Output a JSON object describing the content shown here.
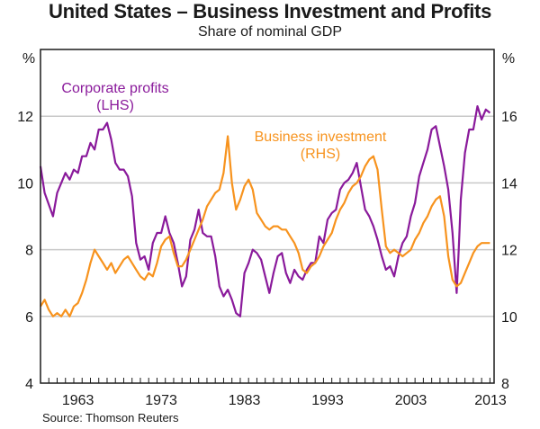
{
  "chart_data": {
    "type": "line",
    "title": "United States – Business Investment and Profits",
    "subtitle": "Share of nominal GDP",
    "source": "Source: Thomson Reuters",
    "xlabel": "",
    "ylabel_left": "%",
    "ylabel_right": "%",
    "xlim": [
      1959.0,
      2013.5
    ],
    "ylim_left": [
      4,
      14
    ],
    "ylim_right": [
      8,
      18
    ],
    "yticks_left": [
      4,
      6,
      8,
      10,
      12
    ],
    "yticks_right": [
      8,
      10,
      12,
      14,
      16
    ],
    "xtick_labels": [
      "1963",
      "1973",
      "1983",
      "1993",
      "2003",
      "2013"
    ],
    "xtick_values": [
      1963.5,
      1973.5,
      1983.5,
      1993.5,
      2003.5,
      2013.5
    ],
    "grid": true,
    "series": [
      {
        "name": "Corporate profits",
        "axis": "LHS",
        "annotation": [
          "Corporate profits",
          "(LHS)"
        ],
        "color": "#8a1a9b",
        "x": [
          1959.0,
          1959.5,
          1960.5,
          1961.0,
          1962.0,
          1962.5,
          1963.0,
          1963.5,
          1964.0,
          1964.5,
          1965.0,
          1965.5,
          1966.0,
          1966.5,
          1967.0,
          1967.5,
          1968.0,
          1968.5,
          1969.0,
          1969.5,
          1970.0,
          1970.5,
          1971.0,
          1971.5,
          1972.0,
          1972.5,
          1973.0,
          1973.5,
          1974.0,
          1974.5,
          1975.0,
          1975.5,
          1976.0,
          1976.5,
          1977.0,
          1977.5,
          1978.0,
          1978.5,
          1979.0,
          1979.5,
          1980.0,
          1980.5,
          1981.0,
          1981.5,
          1982.0,
          1982.5,
          1983.0,
          1983.5,
          1984.0,
          1984.5,
          1985.0,
          1985.5,
          1986.0,
          1986.5,
          1987.0,
          1987.5,
          1988.0,
          1988.5,
          1989.0,
          1989.5,
          1990.0,
          1990.5,
          1991.0,
          1991.5,
          1992.0,
          1992.5,
          1993.0,
          1993.5,
          1994.0,
          1994.5,
          1995.0,
          1995.5,
          1996.0,
          1996.5,
          1997.0,
          1997.5,
          1998.0,
          1998.5,
          1999.0,
          1999.5,
          2000.0,
          2000.5,
          2001.0,
          2001.5,
          2002.0,
          2002.5,
          2003.0,
          2003.5,
          2004.0,
          2004.5,
          2005.0,
          2005.5,
          2006.0,
          2006.5,
          2007.0,
          2007.5,
          2008.0,
          2008.5,
          2009.0,
          2009.25,
          2009.5,
          2010.0,
          2010.5,
          2011.0,
          2011.5,
          2012.0,
          2012.5,
          2013.0
        ],
        "values": [
          10.5,
          9.7,
          9.0,
          9.7,
          10.3,
          10.1,
          10.4,
          10.3,
          10.8,
          10.8,
          11.2,
          11.0,
          11.6,
          11.6,
          11.8,
          11.3,
          10.6,
          10.4,
          10.4,
          10.2,
          9.6,
          8.2,
          7.7,
          7.8,
          7.4,
          8.2,
          8.5,
          8.5,
          9.0,
          8.5,
          8.2,
          7.6,
          6.9,
          7.2,
          8.3,
          8.6,
          9.2,
          8.5,
          8.4,
          8.4,
          7.8,
          6.9,
          6.6,
          6.8,
          6.5,
          6.1,
          6.0,
          7.3,
          7.6,
          8.0,
          7.9,
          7.7,
          7.2,
          6.7,
          7.3,
          7.8,
          7.9,
          7.3,
          7.0,
          7.4,
          7.2,
          7.1,
          7.4,
          7.6,
          7.6,
          8.4,
          8.2,
          8.9,
          9.1,
          9.2,
          9.8,
          10.0,
          10.1,
          10.3,
          10.6,
          9.9,
          9.2,
          9.0,
          8.7,
          8.3,
          7.8,
          7.4,
          7.5,
          7.2,
          7.8,
          8.2,
          8.4,
          9.0,
          9.4,
          10.2,
          10.6,
          11.0,
          11.6,
          11.7,
          11.1,
          10.5,
          9.8,
          8.5,
          6.7,
          8.0,
          9.5,
          10.9,
          11.6,
          11.6,
          12.3,
          11.9,
          12.2,
          12.1
        ]
      },
      {
        "name": "Business investment",
        "axis": "RHS",
        "annotation": [
          "Business investment",
          "(RHS)"
        ],
        "color": "#f7931e",
        "x": [
          1959.0,
          1959.5,
          1960.0,
          1960.5,
          1961.0,
          1961.5,
          1962.0,
          1962.5,
          1963.0,
          1963.5,
          1964.0,
          1964.5,
          1965.0,
          1965.5,
          1966.0,
          1966.5,
          1967.0,
          1967.5,
          1968.0,
          1968.5,
          1969.0,
          1969.5,
          1970.0,
          1970.5,
          1971.0,
          1971.5,
          1972.0,
          1972.5,
          1973.0,
          1973.5,
          1974.0,
          1974.5,
          1975.0,
          1975.5,
          1976.0,
          1976.5,
          1977.0,
          1977.5,
          1978.0,
          1978.5,
          1979.0,
          1979.5,
          1980.0,
          1980.5,
          1981.0,
          1981.5,
          1982.0,
          1982.5,
          1983.0,
          1983.5,
          1984.0,
          1984.5,
          1985.0,
          1985.5,
          1986.0,
          1986.5,
          1987.0,
          1987.5,
          1988.0,
          1988.5,
          1989.0,
          1989.5,
          1990.0,
          1990.5,
          1991.0,
          1991.5,
          1992.0,
          1992.5,
          1993.0,
          1993.5,
          1994.0,
          1994.5,
          1995.0,
          1995.5,
          1996.0,
          1996.5,
          1997.0,
          1997.5,
          1998.0,
          1998.5,
          1999.0,
          1999.5,
          2000.0,
          2000.5,
          2001.0,
          2001.5,
          2002.0,
          2002.5,
          2003.0,
          2003.5,
          2004.0,
          2004.5,
          2005.0,
          2005.5,
          2006.0,
          2006.5,
          2007.0,
          2007.5,
          2008.0,
          2008.5,
          2009.0,
          2009.5,
          2010.0,
          2010.5,
          2011.0,
          2011.5,
          2012.0,
          2012.5,
          2013.0
        ],
        "values": [
          10.3,
          10.5,
          10.2,
          10.0,
          10.1,
          10.0,
          10.2,
          10.0,
          10.3,
          10.4,
          10.7,
          11.1,
          11.6,
          12.0,
          11.8,
          11.6,
          11.4,
          11.6,
          11.3,
          11.5,
          11.7,
          11.8,
          11.6,
          11.4,
          11.2,
          11.1,
          11.3,
          11.2,
          11.6,
          12.1,
          12.3,
          12.4,
          11.9,
          11.5,
          11.5,
          11.7,
          12.0,
          12.3,
          12.6,
          12.9,
          13.3,
          13.5,
          13.7,
          13.8,
          14.3,
          15.4,
          14.0,
          13.2,
          13.5,
          13.9,
          14.1,
          13.8,
          13.1,
          12.9,
          12.7,
          12.6,
          12.7,
          12.7,
          12.6,
          12.6,
          12.4,
          12.2,
          11.9,
          11.4,
          11.3,
          11.5,
          11.6,
          11.8,
          12.1,
          12.3,
          12.5,
          12.9,
          13.2,
          13.4,
          13.7,
          13.9,
          14.0,
          14.2,
          14.5,
          14.7,
          14.8,
          14.4,
          13.2,
          12.1,
          11.9,
          12.0,
          11.9,
          11.8,
          11.9,
          12.0,
          12.3,
          12.5,
          12.8,
          13.0,
          13.3,
          13.5,
          13.6,
          13.0,
          11.8,
          11.1,
          10.9,
          11.0,
          11.3,
          11.6,
          11.9,
          12.1,
          12.2,
          12.2,
          12.2
        ]
      }
    ]
  }
}
